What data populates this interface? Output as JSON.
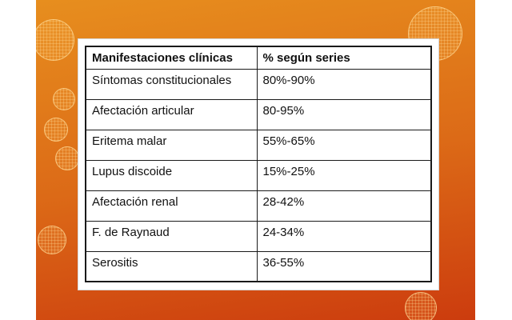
{
  "colors": {
    "bg-top": "#e78e1e",
    "bg-mid": "#dc6a17",
    "bg-bottom": "#cc3c0e",
    "table-border": "#1a1a1a"
  },
  "table": {
    "headers": [
      "Manifestaciones clínicas",
      "% según series"
    ],
    "rows": [
      [
        "Síntomas constitucionales",
        "80%-90%"
      ],
      [
        "Afectación articular",
        "80-95%"
      ],
      [
        "Eritema malar",
        "55%-65%"
      ],
      [
        "Lupus discoide",
        "15%-25%"
      ],
      [
        "Afectación renal",
        "28-42%"
      ],
      [
        "F. de Raynaud",
        "24-34%"
      ],
      [
        "Serositis",
        "36-55%"
      ]
    ]
  }
}
